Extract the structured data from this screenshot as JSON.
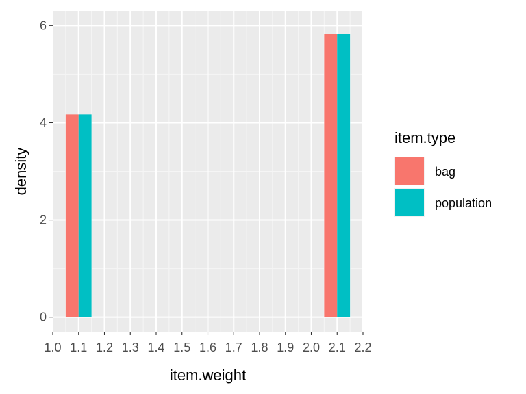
{
  "chart_data": {
    "type": "bar",
    "xlabel": "item.weight",
    "ylabel": "density",
    "xlim": [
      1.0,
      2.2
    ],
    "ylim": [
      0,
      6
    ],
    "x_ticks": [
      "1.0",
      "1.1",
      "1.2",
      "1.3",
      "1.4",
      "1.5",
      "1.6",
      "1.7",
      "1.8",
      "1.9",
      "2.0",
      "2.1",
      "2.2"
    ],
    "y_ticks": [
      "0",
      "2",
      "4",
      "6"
    ],
    "bin_width": 0.1,
    "bins": [
      1.1,
      2.1
    ],
    "series": [
      {
        "name": "bag",
        "color": "#F8766D",
        "values": [
          4.17,
          5.83
        ]
      },
      {
        "name": "population",
        "color": "#00BFC4",
        "values": [
          4.17,
          5.83
        ]
      }
    ],
    "legend": {
      "title": "item.type",
      "position": "right"
    },
    "grid": true,
    "panel_background": "#EBEBEB"
  }
}
